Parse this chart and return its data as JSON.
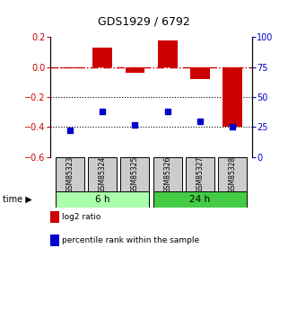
{
  "title": "GDS1929 / 6792",
  "samples": [
    "GSM85323",
    "GSM85324",
    "GSM85325",
    "GSM85326",
    "GSM85327",
    "GSM85328"
  ],
  "log2_ratio": [
    -0.01,
    0.13,
    -0.04,
    0.18,
    -0.08,
    -0.4
  ],
  "percentile_rank": [
    22,
    38,
    27,
    38,
    30,
    25
  ],
  "ylim_left": [
    -0.6,
    0.2
  ],
  "ylim_right": [
    0,
    100
  ],
  "yticks_left": [
    0.2,
    0.0,
    -0.2,
    -0.4,
    -0.6
  ],
  "yticks_right": [
    100,
    75,
    50,
    25,
    0
  ],
  "bar_color": "#cc0000",
  "dot_color": "#0000cc",
  "groups": [
    {
      "label": "6 h",
      "samples": [
        0,
        1,
        2
      ],
      "color": "#aaffaa"
    },
    {
      "label": "24 h",
      "samples": [
        3,
        4,
        5
      ],
      "color": "#44cc44"
    }
  ],
  "hline_color": "#cc0000",
  "dotted_line_color": "#000000",
  "sample_box_color": "#cccccc",
  "legend_items": [
    {
      "label": "log2 ratio",
      "color": "#cc0000"
    },
    {
      "label": "percentile rank within the sample",
      "color": "#0000cc"
    }
  ]
}
